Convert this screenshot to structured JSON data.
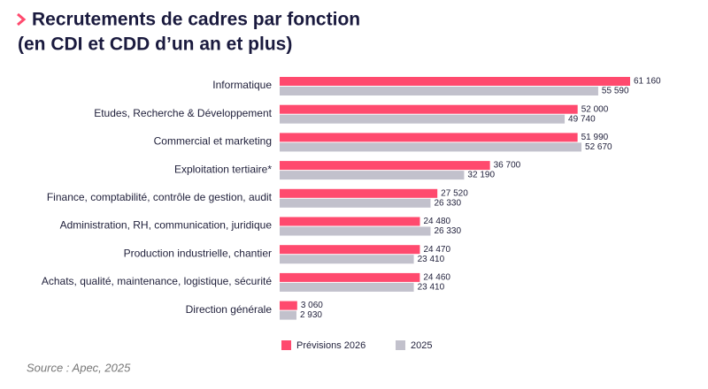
{
  "chart_data": {
    "type": "bar",
    "orientation": "horizontal",
    "title": "Recrutements de cadres par fonction",
    "subtitle": "(en CDI et CDD d’un an et plus)",
    "categories": [
      "Informatique",
      "Etudes, Recherche & Développement",
      "Commercial et marketing",
      "Exploitation tertiaire*",
      "Finance, comptabilité, contrôle de gestion, audit",
      "Administration, RH, communication, juridique",
      "Production industrielle, chantier",
      "Achats, qualité, maintenance, logistique, sécurité",
      "Direction générale"
    ],
    "series": [
      {
        "name": "Prévisions 2026",
        "color": "#ff4a6e",
        "values": [
          61160,
          52000,
          51990,
          36700,
          27520,
          24480,
          24470,
          24460,
          3060
        ],
        "value_labels": [
          "61 160",
          "52 000",
          "51 990",
          "36 700",
          "27 520",
          "24 480",
          "24 470",
          "24 460",
          "3 060"
        ]
      },
      {
        "name": "2025",
        "color": "#c2c1cc",
        "values": [
          55590,
          49740,
          52670,
          32190,
          26330,
          26330,
          23410,
          23410,
          2930
        ],
        "value_labels": [
          "55 590",
          "49 740",
          "52 670",
          "32 190",
          "26 330",
          "26 330",
          "23 410",
          "23 410",
          "2 930"
        ]
      }
    ],
    "source": "Source : Apec, 2025"
  }
}
